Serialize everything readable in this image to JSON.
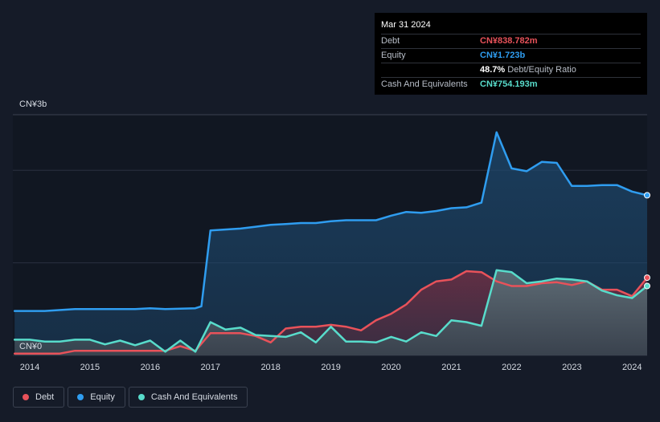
{
  "tooltip": {
    "date": "Mar 31 2024",
    "rows": [
      {
        "label": "Debt",
        "value": "CN¥838.782m",
        "color": "#e8525a"
      },
      {
        "label": "Equity",
        "value": "CN¥1.723b",
        "color": "#2f9df0"
      },
      {
        "label": "",
        "value": "48.7%",
        "suffix": "Debt/Equity Ratio",
        "color": "#ffffff"
      },
      {
        "label": "Cash And Equivalents",
        "value": "CN¥754.193m",
        "color": "#58dccb"
      }
    ]
  },
  "legend": [
    {
      "label": "Debt",
      "color": "#e8525a"
    },
    {
      "label": "Equity",
      "color": "#2f9df0"
    },
    {
      "label": "Cash And Equivalents",
      "color": "#58dccb"
    }
  ],
  "chart_data": {
    "type": "area",
    "title": "",
    "xlabel": "",
    "ylabel": "",
    "y_unit": "CN¥ billions",
    "ylim": [
      0,
      2.6
    ],
    "xlim": [
      2013.72,
      2024.25
    ],
    "y_tick_labels": [
      {
        "value": 0,
        "label": "CN¥0"
      },
      {
        "value": 2.6,
        "label": "CN¥3b"
      }
    ],
    "x_ticks": [
      2014,
      2015,
      2016,
      2017,
      2018,
      2019,
      2020,
      2021,
      2022,
      2023,
      2024
    ],
    "x_tick_labels": [
      "2014",
      "2015",
      "2016",
      "2017",
      "2018",
      "2019",
      "2020",
      "2021",
      "2022",
      "2023",
      "2024"
    ],
    "grid": true,
    "series": [
      {
        "name": "Equity",
        "color": "#2f9df0",
        "points": [
          [
            2013.75,
            0.48
          ],
          [
            2014.25,
            0.48
          ],
          [
            2014.75,
            0.5
          ],
          [
            2015.25,
            0.5
          ],
          [
            2015.75,
            0.5
          ],
          [
            2016.0,
            0.51
          ],
          [
            2016.25,
            0.5
          ],
          [
            2016.75,
            0.51
          ],
          [
            2016.85,
            0.53
          ],
          [
            2017.0,
            1.35
          ],
          [
            2017.5,
            1.37
          ],
          [
            2017.75,
            1.39
          ],
          [
            2018.0,
            1.41
          ],
          [
            2018.25,
            1.42
          ],
          [
            2018.5,
            1.43
          ],
          [
            2018.75,
            1.43
          ],
          [
            2019.0,
            1.45
          ],
          [
            2019.25,
            1.46
          ],
          [
            2019.5,
            1.46
          ],
          [
            2019.75,
            1.46
          ],
          [
            2020.0,
            1.51
          ],
          [
            2020.25,
            1.55
          ],
          [
            2020.5,
            1.54
          ],
          [
            2020.75,
            1.56
          ],
          [
            2021.0,
            1.59
          ],
          [
            2021.25,
            1.6
          ],
          [
            2021.5,
            1.65
          ],
          [
            2021.75,
            2.41
          ],
          [
            2022.0,
            2.02
          ],
          [
            2022.25,
            1.99
          ],
          [
            2022.5,
            2.09
          ],
          [
            2022.75,
            2.08
          ],
          [
            2023.0,
            1.83
          ],
          [
            2023.25,
            1.83
          ],
          [
            2023.5,
            1.84
          ],
          [
            2023.75,
            1.84
          ],
          [
            2024.0,
            1.77
          ],
          [
            2024.25,
            1.73
          ]
        ]
      },
      {
        "name": "Debt",
        "color": "#e8525a",
        "points": [
          [
            2013.75,
            0.02
          ],
          [
            2014.25,
            0.02
          ],
          [
            2014.5,
            0.02
          ],
          [
            2014.75,
            0.05
          ],
          [
            2015.25,
            0.05
          ],
          [
            2015.75,
            0.05
          ],
          [
            2016.0,
            0.05
          ],
          [
            2016.25,
            0.05
          ],
          [
            2016.5,
            0.1
          ],
          [
            2016.75,
            0.05
          ],
          [
            2017.0,
            0.24
          ],
          [
            2017.25,
            0.24
          ],
          [
            2017.5,
            0.24
          ],
          [
            2017.75,
            0.21
          ],
          [
            2018.0,
            0.14
          ],
          [
            2018.25,
            0.29
          ],
          [
            2018.5,
            0.31
          ],
          [
            2018.75,
            0.31
          ],
          [
            2019.0,
            0.33
          ],
          [
            2019.25,
            0.31
          ],
          [
            2019.5,
            0.27
          ],
          [
            2019.75,
            0.38
          ],
          [
            2020.0,
            0.45
          ],
          [
            2020.25,
            0.55
          ],
          [
            2020.5,
            0.71
          ],
          [
            2020.75,
            0.8
          ],
          [
            2021.0,
            0.82
          ],
          [
            2021.25,
            0.91
          ],
          [
            2021.5,
            0.9
          ],
          [
            2021.75,
            0.8
          ],
          [
            2022.0,
            0.75
          ],
          [
            2022.25,
            0.75
          ],
          [
            2022.5,
            0.78
          ],
          [
            2022.75,
            0.79
          ],
          [
            2023.0,
            0.76
          ],
          [
            2023.25,
            0.8
          ],
          [
            2023.5,
            0.71
          ],
          [
            2023.75,
            0.71
          ],
          [
            2024.0,
            0.64
          ],
          [
            2024.25,
            0.84
          ]
        ]
      },
      {
        "name": "Cash And Equivalents",
        "color": "#58dccb",
        "points": [
          [
            2013.75,
            0.17
          ],
          [
            2014.0,
            0.17
          ],
          [
            2014.25,
            0.15
          ],
          [
            2014.5,
            0.15
          ],
          [
            2014.75,
            0.17
          ],
          [
            2015.0,
            0.17
          ],
          [
            2015.25,
            0.12
          ],
          [
            2015.5,
            0.16
          ],
          [
            2015.75,
            0.11
          ],
          [
            2016.0,
            0.16
          ],
          [
            2016.25,
            0.04
          ],
          [
            2016.5,
            0.16
          ],
          [
            2016.75,
            0.04
          ],
          [
            2017.0,
            0.36
          ],
          [
            2017.25,
            0.28
          ],
          [
            2017.5,
            0.3
          ],
          [
            2017.75,
            0.22
          ],
          [
            2018.0,
            0.21
          ],
          [
            2018.25,
            0.2
          ],
          [
            2018.5,
            0.25
          ],
          [
            2018.75,
            0.14
          ],
          [
            2019.0,
            0.31
          ],
          [
            2019.25,
            0.15
          ],
          [
            2019.5,
            0.15
          ],
          [
            2019.75,
            0.14
          ],
          [
            2020.0,
            0.2
          ],
          [
            2020.25,
            0.15
          ],
          [
            2020.5,
            0.25
          ],
          [
            2020.75,
            0.21
          ],
          [
            2021.0,
            0.38
          ],
          [
            2021.25,
            0.36
          ],
          [
            2021.5,
            0.32
          ],
          [
            2021.75,
            0.92
          ],
          [
            2022.0,
            0.9
          ],
          [
            2022.25,
            0.78
          ],
          [
            2022.5,
            0.8
          ],
          [
            2022.75,
            0.83
          ],
          [
            2023.0,
            0.82
          ],
          [
            2023.25,
            0.8
          ],
          [
            2023.5,
            0.7
          ],
          [
            2023.75,
            0.65
          ],
          [
            2024.0,
            0.62
          ],
          [
            2024.25,
            0.75
          ]
        ]
      }
    ]
  }
}
